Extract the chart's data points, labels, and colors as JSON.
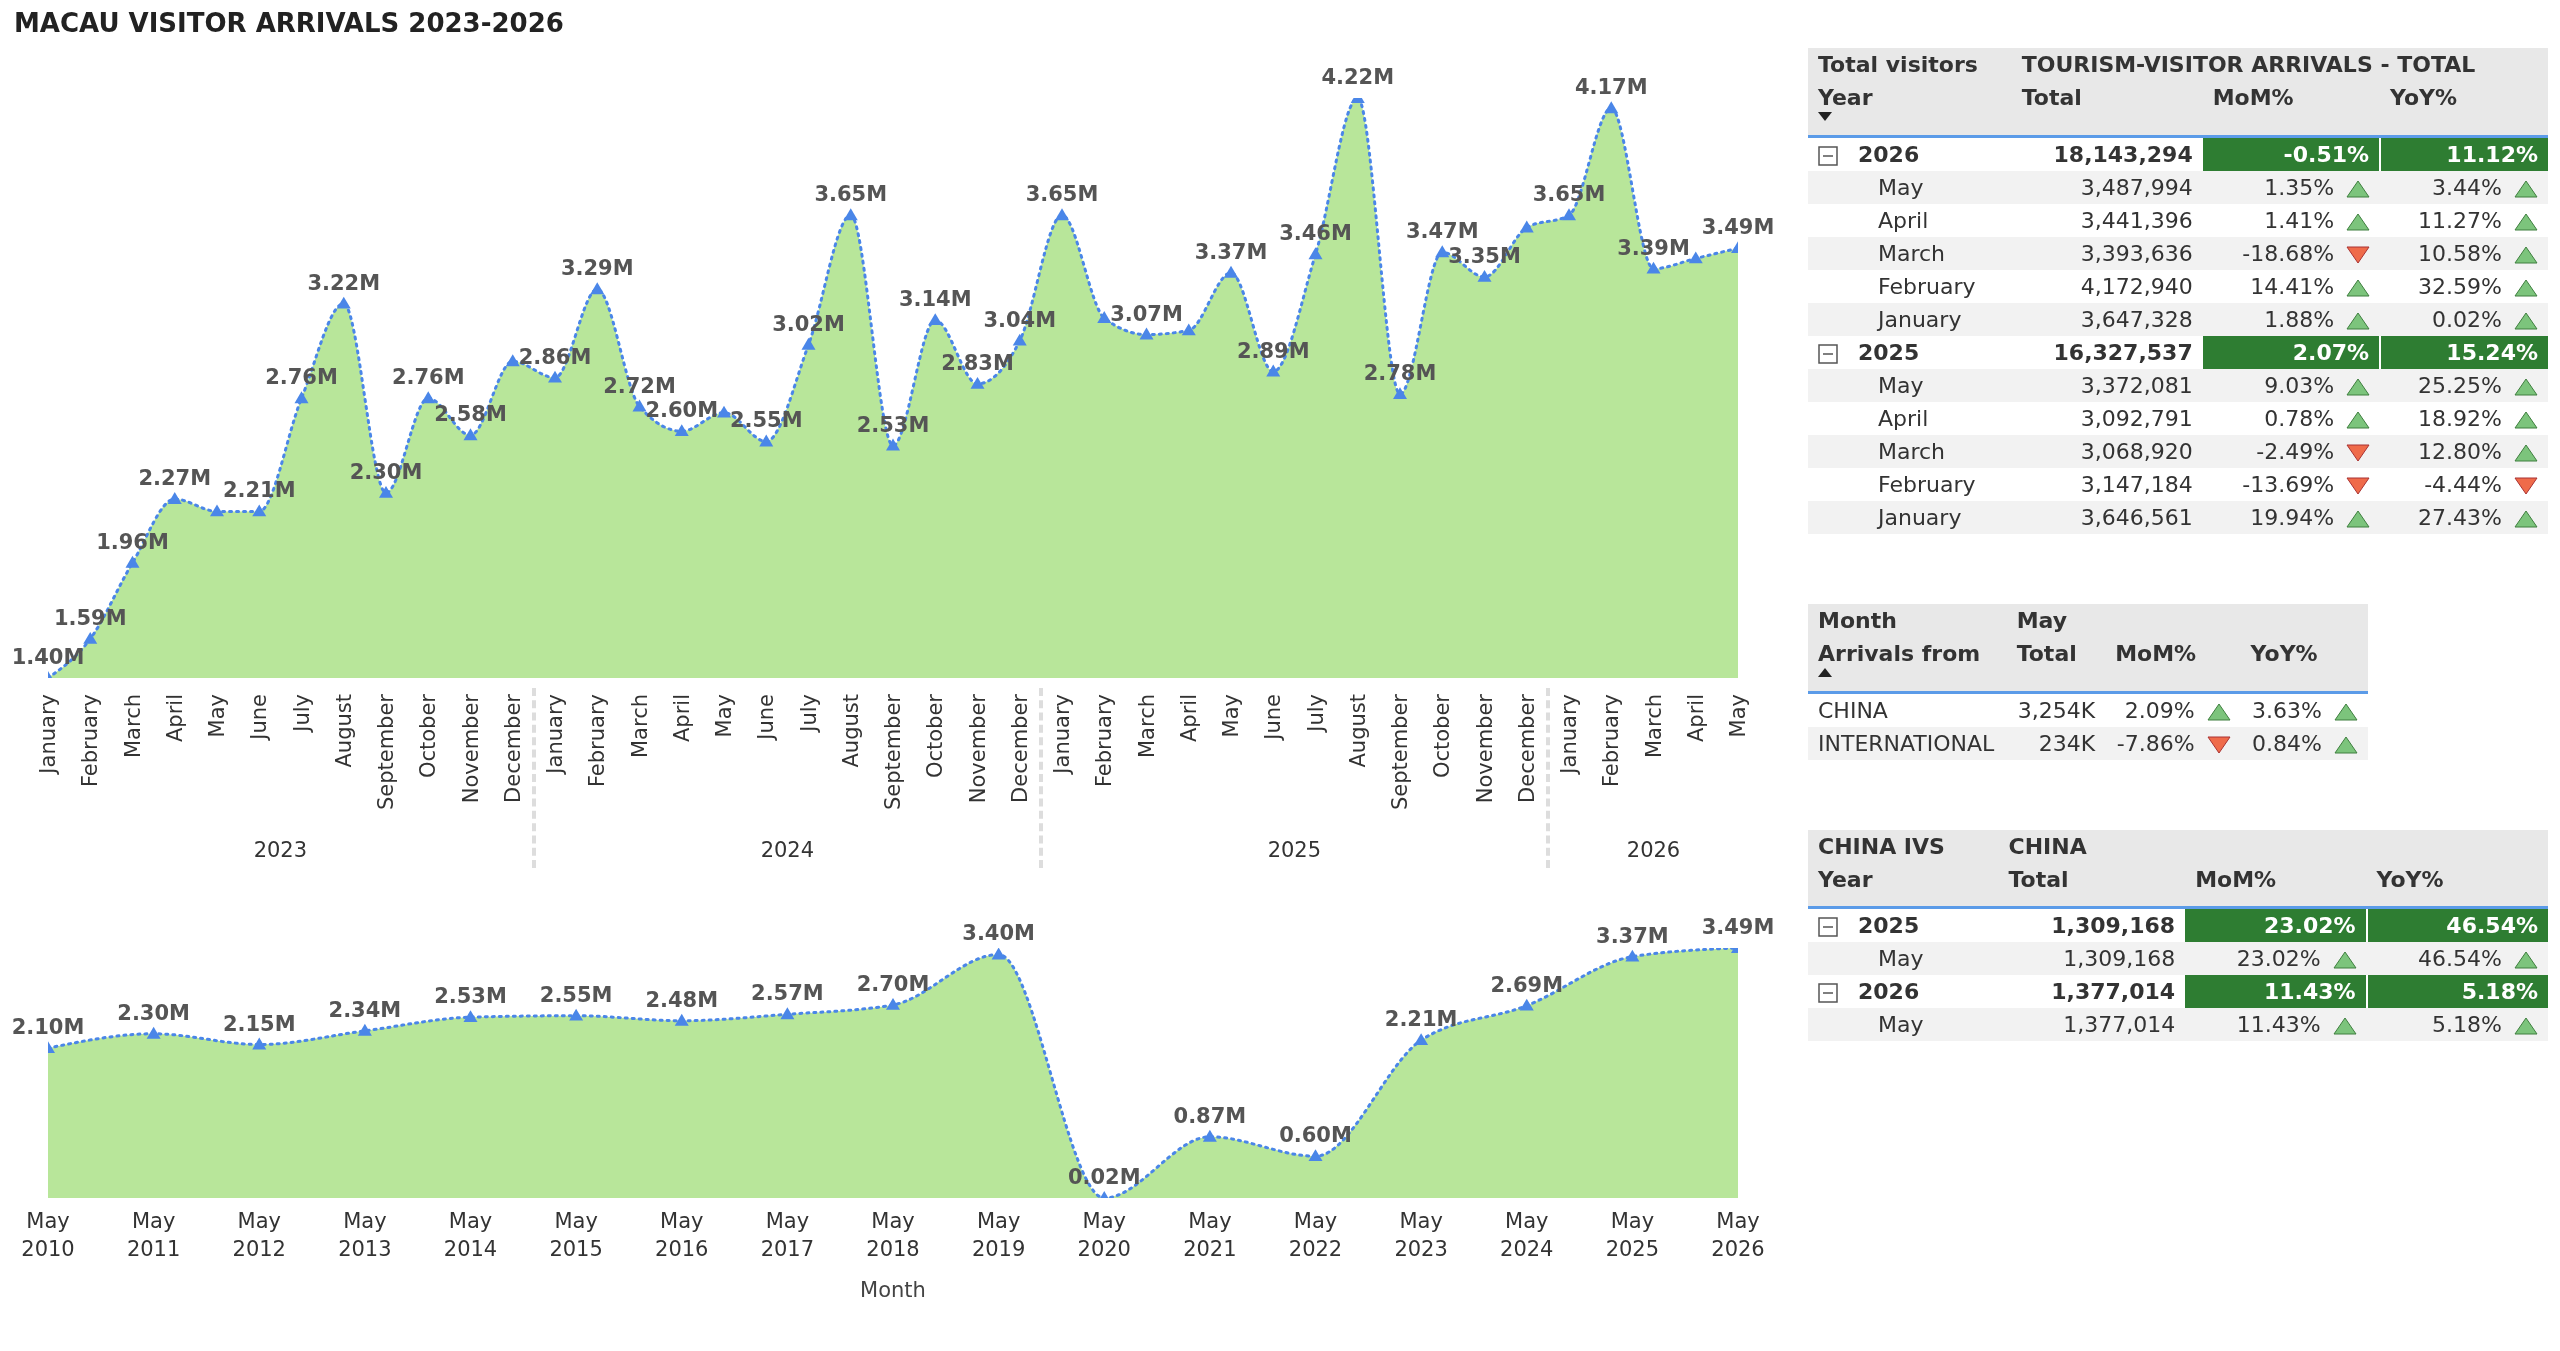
{
  "chart_data": [
    {
      "type": "area",
      "title": "MACAU VISITOR ARRIVALS 2023-2026",
      "marker": "triangle",
      "line_style": "dotted",
      "categories": [
        "January",
        "February",
        "March",
        "April",
        "May",
        "June",
        "July",
        "August",
        "September",
        "October",
        "November",
        "December",
        "January",
        "February",
        "March",
        "April",
        "May",
        "June",
        "July",
        "August",
        "September",
        "October",
        "November",
        "December",
        "January",
        "February",
        "March",
        "April",
        "May",
        "June",
        "July",
        "August",
        "September",
        "October",
        "November",
        "December",
        "January",
        "February",
        "March",
        "April",
        "May"
      ],
      "series": [
        {
          "color": "#b8e69a",
          "values": [
            1.4,
            1.59,
            1.96,
            2.27,
            2.21,
            2.21,
            2.76,
            3.22,
            2.3,
            2.76,
            2.58,
            2.94,
            2.86,
            3.29,
            2.72,
            2.6,
            2.69,
            2.55,
            3.02,
            3.65,
            2.53,
            3.14,
            2.83,
            3.04,
            3.65,
            3.15,
            3.07,
            3.09,
            3.37,
            2.89,
            3.46,
            4.22,
            2.78,
            3.47,
            3.35,
            3.59,
            3.65,
            4.17,
            3.39,
            3.44,
            3.49
          ],
          "value_labels": [
            "1.40M",
            "1.59M",
            "1.96M",
            "2.27M",
            null,
            "2.21M",
            "2.76M",
            "3.22M",
            "2.30M",
            "2.76M",
            "2.58M",
            null,
            "2.86M",
            "3.29M",
            "2.72M",
            "2.60M",
            null,
            "2.55M",
            "3.02M",
            "3.65M",
            "2.53M",
            "3.14M",
            "2.83M",
            "3.04M",
            "3.65M",
            null,
            "3.07M",
            null,
            "3.37M",
            "2.89M",
            "3.46M",
            "4.22M",
            "2.78M",
            "3.47M",
            "3.35M",
            null,
            "3.65M",
            "4.17M",
            "3.39M",
            null,
            "3.49M"
          ]
        }
      ],
      "annotations": [
        "2023",
        "2024",
        "2025",
        "2026"
      ]
    },
    {
      "type": "area",
      "xlabel": "Month",
      "marker": "triangle",
      "line_style": "dotted",
      "categories": [
        "May 2010",
        "May 2011",
        "May 2012",
        "May 2013",
        "May 2014",
        "May 2015",
        "May 2016",
        "May 2017",
        "May 2018",
        "May 2019",
        "May 2020",
        "May 2021",
        "May 2022",
        "May 2023",
        "May 2024",
        "May 2025",
        "May 2026"
      ],
      "series": [
        {
          "color": "#b8e69a",
          "values": [
            2.1,
            2.3,
            2.15,
            2.34,
            2.53,
            2.55,
            2.48,
            2.57,
            2.7,
            3.4,
            0.02,
            0.87,
            0.6,
            2.21,
            2.69,
            3.37,
            3.49
          ],
          "value_labels": [
            "2.10M",
            "2.30M",
            "2.15M",
            "2.34M",
            "2.53M",
            "2.55M",
            "2.48M",
            "2.57M",
            "2.70M",
            "3.40M",
            "0.02M",
            "0.87M",
            "0.60M",
            "2.21M",
            "2.69M",
            "3.37M",
            "3.49M"
          ]
        }
      ]
    },
    {
      "type": "other",
      "title": "Total visitors",
      "subtitle": "TOURISM-VISITOR ARRIVALS - TOTAL",
      "categories": [
        "Year",
        "Total",
        "MoM%",
        "YoY%"
      ],
      "y_categories": [
        "2026",
        "May",
        "April",
        "March",
        "February",
        "January",
        "2025",
        "May",
        "April",
        "March",
        "February",
        "January"
      ],
      "cell_labels": [
        [
          "18,143,294",
          "-0.51%",
          "11.12%"
        ],
        [
          "3,487,994",
          "1.35%",
          "3.44%"
        ],
        [
          "3,441,396",
          "1.41%",
          "11.27%"
        ],
        [
          "3,393,636",
          "-18.68%",
          "10.58%"
        ],
        [
          "4,172,940",
          "14.41%",
          "32.59%"
        ],
        [
          "3,647,328",
          "1.88%",
          "0.02%"
        ],
        [
          "16,327,537",
          "2.07%",
          "15.24%"
        ],
        [
          "3,372,081",
          "9.03%",
          "25.25%"
        ],
        [
          "3,092,791",
          "0.78%",
          "18.92%"
        ],
        [
          "3,068,920",
          "-2.49%",
          "12.80%"
        ],
        [
          "3,147,184",
          "-13.69%",
          "-4.44%"
        ],
        [
          "3,646,561",
          "19.94%",
          "27.43%"
        ]
      ]
    },
    {
      "type": "other",
      "title": "Month",
      "subtitle": "May",
      "categories": [
        "Arrivals from",
        "Total",
        "MoM%",
        "YoY%"
      ],
      "y_categories": [
        "CHINA",
        "INTERNATIONAL"
      ],
      "cell_labels": [
        [
          "3,254K",
          "2.09%",
          "3.63%"
        ],
        [
          "234K",
          "-7.86%",
          "0.84%"
        ]
      ]
    },
    {
      "type": "other",
      "title": "CHINA IVS",
      "subtitle": "CHINA",
      "categories": [
        "Year",
        "Total",
        "MoM%",
        "YoY%"
      ],
      "y_categories": [
        "2025",
        "May",
        "2026",
        "May"
      ],
      "cell_labels": [
        [
          "1,309,168",
          "23.02%",
          "46.54%"
        ],
        [
          "1,309,168",
          "23.02%",
          "46.54%"
        ],
        [
          "1,377,014",
          "11.43%",
          "5.18%"
        ],
        [
          "1,377,014",
          "11.43%",
          "5.18%"
        ]
      ]
    }
  ]
}
